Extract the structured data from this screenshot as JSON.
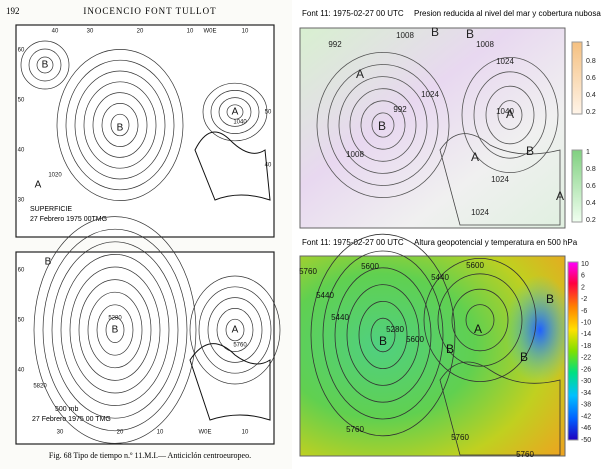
{
  "page": {
    "number": "192",
    "header": "INOCENCIO FONT TULLOT",
    "caption": "Fig. 68 Tipo de tiempo n.º 11.M.I.— Anticiclón centroeuropeo."
  },
  "surface_map": {
    "title": "SUPERFICIE",
    "date": "27 Febrero 1975   00TMG",
    "labels": [
      "B",
      "B",
      "A",
      "A",
      "1040",
      "1020",
      "60",
      "50",
      "40",
      "30",
      "40",
      "30",
      "20",
      "10",
      "W0E",
      "10",
      "50",
      "40"
    ]
  },
  "upper_map": {
    "title": "500 mb",
    "date": "27 Febrero 1975    00 TMG",
    "labels": [
      "B",
      "B",
      "A",
      "5280",
      "5760",
      "5820",
      "60",
      "50",
      "40",
      "30",
      "20",
      "10",
      "W0E",
      "10"
    ]
  },
  "pressure_panel": {
    "title": "Font 11: 1975-02-27 00 UTC",
    "subtitle": "Presion reducida al nivel del mar y cobertura nubosa",
    "labels": [
      "992",
      "1008",
      "B",
      "B",
      "A",
      "A",
      "B",
      "992",
      "1008",
      "1024",
      "1008",
      "1024",
      "1040",
      "A",
      "B",
      "1024",
      "1024",
      "A"
    ],
    "colorbar_upper": [
      1,
      0.8,
      0.6,
      0.4,
      0.2
    ],
    "colorbar_lower": [
      1,
      0.8,
      0.6,
      0.4,
      0.2
    ]
  },
  "height_panel": {
    "title": "Font 11: 1975-02-27 00 UTC",
    "subtitle": "Altura geopotencial y temperatura en 500 hPa",
    "labels": [
      "5760",
      "5600",
      "5440",
      "5440",
      "B",
      "5280",
      "5600",
      "A",
      "B",
      "B",
      "B",
      "5440",
      "5600",
      "5760",
      "5760",
      "5760"
    ],
    "colorbar": [
      10,
      6,
      2,
      -2,
      -6,
      -10,
      -14,
      -18,
      -22,
      -26,
      -30,
      -34,
      -38,
      -42,
      -46,
      -50
    ]
  }
}
